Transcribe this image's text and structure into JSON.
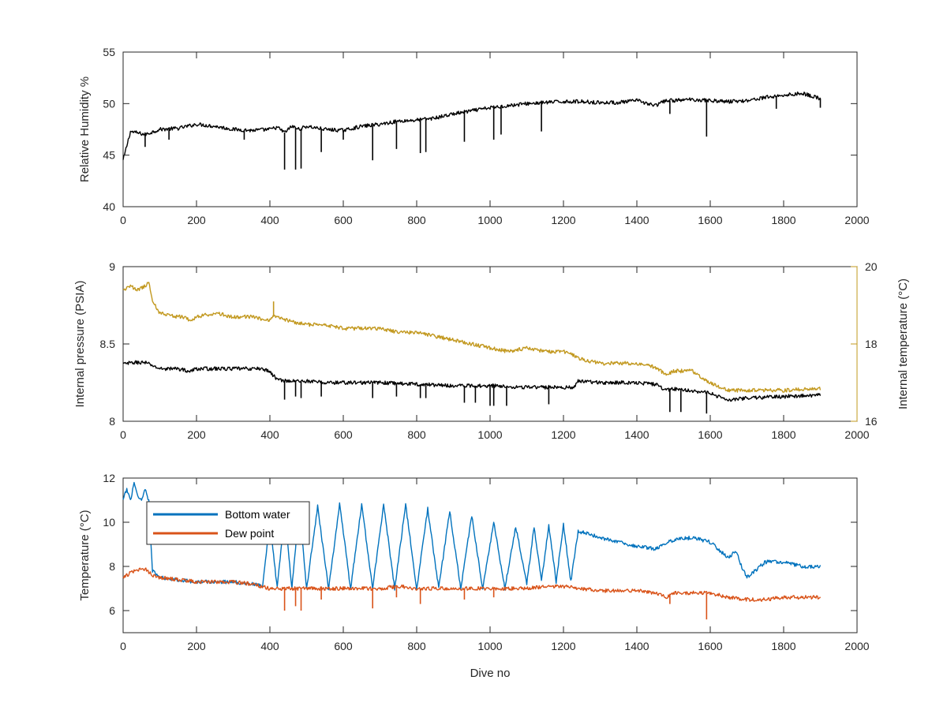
{
  "colors": {
    "black": "#000000",
    "gold": "#C2981E",
    "blue": "#0072BD",
    "orange": "#D95319",
    "axis": "#262626"
  },
  "chart_data": [
    {
      "type": "line",
      "xlabel": "",
      "ylabel": "Relative Humidity %",
      "xlim": [
        0,
        2000
      ],
      "ylim": [
        40,
        55
      ],
      "x_ticks": [
        "0",
        "200",
        "400",
        "600",
        "800",
        "1000",
        "1200",
        "1400",
        "1600",
        "1800",
        "2000"
      ],
      "y_ticks": [
        "40",
        "45",
        "50",
        "55"
      ],
      "grid": false,
      "series": [
        {
          "color": "#000000",
          "x": [
            0,
            20,
            60,
            100,
            150,
            200,
            250,
            300,
            350,
            400,
            420,
            440,
            460,
            480,
            500,
            550,
            600,
            650,
            700,
            750,
            800,
            850,
            900,
            950,
            1000,
            1050,
            1100,
            1150,
            1200,
            1250,
            1300,
            1350,
            1400,
            1450,
            1480,
            1500,
            1550,
            1600,
            1650,
            1700,
            1750,
            1800,
            1850,
            1900
          ],
          "y": [
            44.5,
            47.3,
            47.0,
            47.5,
            47.6,
            48.0,
            47.8,
            47.5,
            47.4,
            47.5,
            47.7,
            47.2,
            47.8,
            47.5,
            47.8,
            47.5,
            47.4,
            47.8,
            48.0,
            48.3,
            48.4,
            48.6,
            49.0,
            49.3,
            49.6,
            49.8,
            50.0,
            50.1,
            50.2,
            50.2,
            50.1,
            50.1,
            50.3,
            49.8,
            50.3,
            50.3,
            50.4,
            50.3,
            50.2,
            50.3,
            50.6,
            50.8,
            51.0,
            50.5
          ],
          "dips": [
            [
              60,
              45.8
            ],
            [
              125,
              46.5
            ],
            [
              330,
              46.5
            ],
            [
              440,
              43.6
            ],
            [
              470,
              43.6
            ],
            [
              485,
              43.7
            ],
            [
              540,
              45.3
            ],
            [
              600,
              46.5
            ],
            [
              680,
              44.5
            ],
            [
              745,
              45.6
            ],
            [
              810,
              45.2
            ],
            [
              825,
              45.3
            ],
            [
              930,
              46.3
            ],
            [
              1010,
              46.5
            ],
            [
              1030,
              47.0
            ],
            [
              1140,
              47.3
            ],
            [
              1490,
              49.0
            ],
            [
              1590,
              46.8
            ],
            [
              1780,
              49.5
            ],
            [
              1900,
              49.6
            ]
          ]
        }
      ]
    },
    {
      "type": "line",
      "xlabel": "",
      "ylabel": "Internal pressure (PSIA)",
      "ylabel_right": "Internal temperature (°C)",
      "xlim": [
        0,
        2000
      ],
      "ylim": [
        8,
        9
      ],
      "ylim_right": [
        16,
        20
      ],
      "x_ticks": [
        "0",
        "200",
        "400",
        "600",
        "800",
        "1000",
        "1200",
        "1400",
        "1600",
        "1800",
        "2000"
      ],
      "y_ticks": [
        "8",
        "8.5",
        "9"
      ],
      "y_ticks_right": [
        "16",
        "18",
        "20"
      ],
      "grid": false,
      "series": [
        {
          "axis": "left",
          "color": "#000000",
          "x": [
            0,
            30,
            60,
            80,
            100,
            150,
            170,
            180,
            200,
            250,
            300,
            350,
            380,
            400,
            420,
            450,
            500,
            550,
            600,
            650,
            700,
            800,
            900,
            1000,
            1100,
            1200,
            1230,
            1240,
            1300,
            1400,
            1450,
            1480,
            1500,
            1550,
            1600,
            1620,
            1650,
            1700,
            1800,
            1900
          ],
          "y": [
            8.37,
            8.38,
            8.38,
            8.36,
            8.34,
            8.34,
            8.33,
            8.32,
            8.34,
            8.34,
            8.34,
            8.34,
            8.34,
            8.32,
            8.27,
            8.26,
            8.26,
            8.25,
            8.25,
            8.25,
            8.25,
            8.24,
            8.23,
            8.23,
            8.22,
            8.22,
            8.22,
            8.26,
            8.25,
            8.25,
            8.24,
            8.2,
            8.21,
            8.2,
            8.18,
            8.16,
            8.14,
            8.15,
            8.16,
            8.17
          ],
          "dips": [
            [
              440,
              8.14
            ],
            [
              470,
              8.16
            ],
            [
              485,
              8.15
            ],
            [
              540,
              8.16
            ],
            [
              680,
              8.15
            ],
            [
              745,
              8.16
            ],
            [
              810,
              8.15
            ],
            [
              825,
              8.15
            ],
            [
              930,
              8.12
            ],
            [
              960,
              8.12
            ],
            [
              1000,
              8.1
            ],
            [
              1010,
              8.1
            ],
            [
              1045,
              8.1
            ],
            [
              1160,
              8.11
            ],
            [
              1490,
              8.06
            ],
            [
              1520,
              8.06
            ],
            [
              1590,
              8.05
            ]
          ]
        },
        {
          "axis": "right",
          "color": "#C2981E",
          "x": [
            0,
            20,
            40,
            60,
            70,
            80,
            100,
            150,
            170,
            180,
            200,
            250,
            300,
            350,
            400,
            410,
            420,
            450,
            500,
            550,
            600,
            650,
            700,
            750,
            800,
            850,
            900,
            950,
            1000,
            1050,
            1100,
            1150,
            1200,
            1230,
            1250,
            1300,
            1350,
            1400,
            1450,
            1480,
            1500,
            1550,
            1600,
            1620,
            1650,
            1700,
            1800,
            1900
          ],
          "y": [
            19.4,
            19.5,
            19.4,
            19.5,
            19.6,
            19.1,
            18.8,
            18.7,
            18.7,
            18.6,
            18.7,
            18.8,
            18.7,
            18.7,
            18.6,
            18.7,
            18.7,
            18.6,
            18.5,
            18.5,
            18.4,
            18.4,
            18.4,
            18.3,
            18.3,
            18.2,
            18.1,
            18.0,
            17.9,
            17.8,
            17.9,
            17.8,
            17.8,
            17.7,
            17.6,
            17.5,
            17.5,
            17.5,
            17.4,
            17.2,
            17.3,
            17.3,
            17.0,
            16.9,
            16.8,
            16.8,
            16.8,
            16.85
          ],
          "dips": [
            [
              410,
              19.1
            ]
          ]
        }
      ]
    },
    {
      "type": "line",
      "xlabel": "Dive no",
      "ylabel": "Temperature (°C)",
      "xlim": [
        0,
        2000
      ],
      "ylim": [
        5,
        12
      ],
      "x_ticks": [
        "0",
        "200",
        "400",
        "600",
        "800",
        "1000",
        "1200",
        "1400",
        "1600",
        "1800",
        "2000"
      ],
      "y_ticks": [
        "6",
        "8",
        "10",
        "12"
      ],
      "grid": false,
      "legend": "top-left",
      "series": [
        {
          "name": "Bottom water",
          "color": "#0072BD",
          "x": [
            0,
            10,
            20,
            30,
            40,
            50,
            60,
            70,
            80,
            100,
            150,
            200,
            250,
            300,
            350,
            380,
            400,
            420,
            440,
            460,
            480,
            500,
            530,
            560,
            590,
            620,
            650,
            680,
            710,
            740,
            770,
            800,
            830,
            860,
            890,
            920,
            950,
            980,
            1010,
            1040,
            1070,
            1100,
            1120,
            1140,
            1160,
            1180,
            1200,
            1220,
            1240,
            1260,
            1300,
            1350,
            1400,
            1450,
            1500,
            1550,
            1600,
            1620,
            1650,
            1670,
            1690,
            1700,
            1750,
            1800,
            1850,
            1900
          ],
          "y": [
            11.0,
            11.5,
            11.0,
            11.8,
            11.2,
            11.0,
            11.5,
            11.0,
            7.8,
            7.5,
            7.4,
            7.3,
            7.3,
            7.3,
            7.2,
            7.1,
            10.0,
            7.0,
            10.5,
            7.0,
            10.7,
            7.0,
            10.7,
            7.0,
            10.8,
            7.0,
            10.8,
            7.0,
            10.8,
            7.0,
            10.8,
            7.0,
            10.6,
            7.0,
            10.5,
            7.0,
            10.3,
            7.0,
            10.0,
            7.0,
            9.8,
            7.2,
            9.8,
            7.3,
            9.9,
            7.3,
            9.9,
            7.3,
            9.6,
            9.5,
            9.3,
            9.1,
            8.9,
            8.8,
            9.2,
            9.3,
            9.1,
            8.8,
            8.4,
            8.7,
            7.8,
            7.5,
            8.2,
            8.2,
            8.0,
            8.0
          ],
          "dips": []
        },
        {
          "name": "Dew point",
          "color": "#D95319",
          "x": [
            0,
            30,
            60,
            80,
            100,
            150,
            200,
            250,
            300,
            350,
            400,
            450,
            500,
            550,
            600,
            650,
            700,
            750,
            800,
            850,
            900,
            950,
            1000,
            1050,
            1100,
            1150,
            1200,
            1250,
            1300,
            1350,
            1400,
            1450,
            1480,
            1500,
            1550,
            1600,
            1650,
            1700,
            1750,
            1800,
            1850,
            1900
          ],
          "y": [
            7.5,
            7.8,
            7.9,
            7.6,
            7.5,
            7.4,
            7.3,
            7.3,
            7.3,
            7.2,
            7.0,
            7.0,
            7.0,
            7.0,
            7.0,
            7.0,
            7.0,
            7.1,
            7.0,
            7.0,
            7.0,
            7.0,
            7.0,
            7.0,
            7.0,
            7.1,
            7.1,
            7.0,
            6.9,
            6.9,
            6.9,
            6.8,
            6.6,
            6.8,
            6.8,
            6.8,
            6.6,
            6.5,
            6.5,
            6.6,
            6.6,
            6.6
          ],
          "dips": [
            [
              440,
              6.0
            ],
            [
              470,
              6.2
            ],
            [
              485,
              6.0
            ],
            [
              540,
              6.5
            ],
            [
              680,
              6.1
            ],
            [
              745,
              6.6
            ],
            [
              810,
              6.3
            ],
            [
              930,
              6.5
            ],
            [
              1010,
              6.6
            ],
            [
              1490,
              6.3
            ],
            [
              1590,
              5.6
            ]
          ]
        }
      ]
    }
  ],
  "legend": {
    "entries": [
      "Bottom water",
      "Dew point"
    ]
  }
}
